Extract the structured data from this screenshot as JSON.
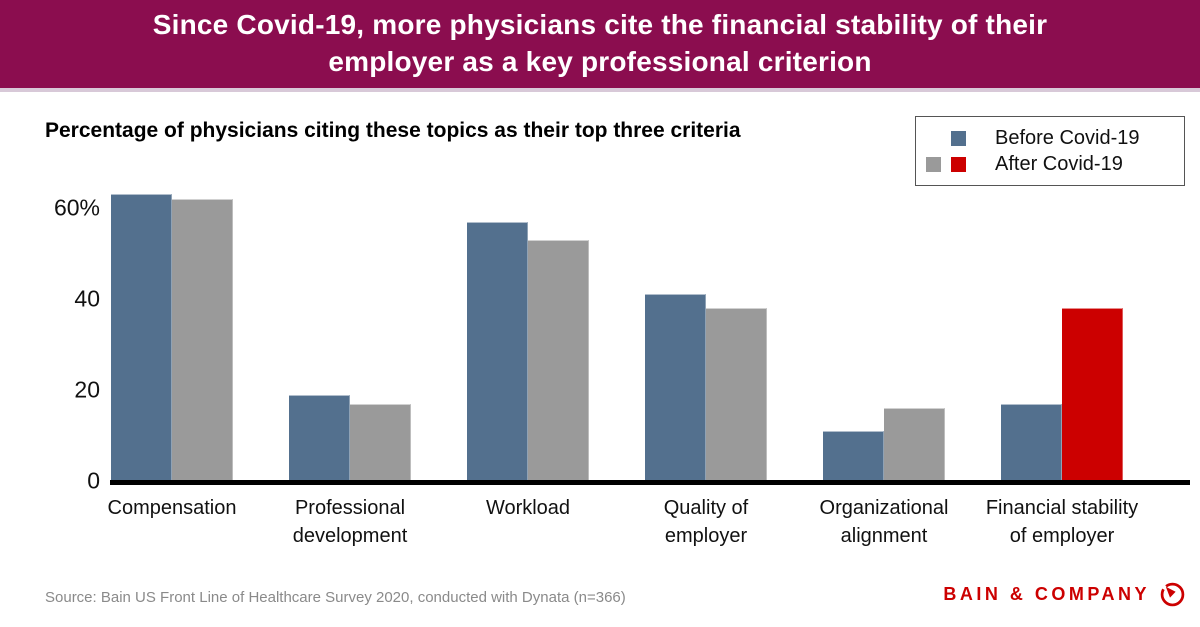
{
  "header": {
    "title": "Since Covid-19, more physicians cite the financial stability of their\nemployer as a key professional criterion",
    "background_color": "#8B0D4F"
  },
  "subtitle": "Percentage of physicians citing these topics as their top three criteria",
  "legend": {
    "items": [
      {
        "label": "Before Covid-19",
        "colors": [
          "#53708E"
        ]
      },
      {
        "label": "After Covid-19",
        "colors": [
          "#9A9A9A",
          "#CC0000"
        ]
      }
    ]
  },
  "chart_data": {
    "type": "bar",
    "title": "Percentage of physicians citing these topics as their top three criteria",
    "categories": [
      "Compensation",
      "Professional\ndevelopment",
      "Workload",
      "Quality of\nemployer",
      "Organizational\nalignment",
      "Financial stability\nof employer"
    ],
    "series": [
      {
        "name": "Before Covid-19",
        "color": "#53708E",
        "values": [
          63,
          19,
          57,
          41,
          11,
          17
        ]
      },
      {
        "name": "After Covid-19",
        "color": "#9A9A9A",
        "values": [
          62,
          17,
          53,
          38,
          16,
          38
        ],
        "bar_colors": [
          "#9A9A9A",
          "#9A9A9A",
          "#9A9A9A",
          "#9A9A9A",
          "#9A9A9A",
          "#CC0000"
        ]
      }
    ],
    "highlight_note": "After Covid-19 value for Financial stability of employer shown in red",
    "yticks": [
      {
        "label": "60%",
        "value": 60
      },
      {
        "label": "40",
        "value": 40
      },
      {
        "label": "20",
        "value": 20
      },
      {
        "label": "0",
        "value": 0
      }
    ],
    "ylim": [
      0,
      66
    ],
    "unit": "percent",
    "grid": false,
    "legend_position": "top-right"
  },
  "footer": {
    "source": "Source: Bain US Front Line of Healthcare Survey 2020, conducted with Dynata (n=366)",
    "brand": "BAIN & COMPANY",
    "brand_color": "#CC0000"
  }
}
